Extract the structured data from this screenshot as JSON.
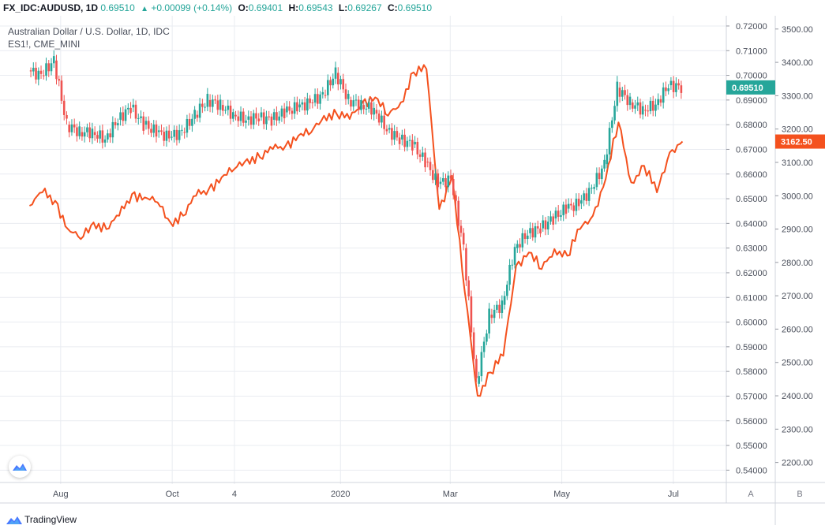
{
  "header": {
    "symbol": "FX_IDC:AUDUSD, 1D",
    "last": "0.69510",
    "change": "+0.00099 (+0.14%)",
    "o_label": "O:",
    "o_value": "0.69401",
    "h_label": "H:",
    "h_value": "0.69543",
    "l_label": "L:",
    "l_value": "0.69267",
    "c_label": "C:",
    "c_value": "0.69510"
  },
  "legend": {
    "main": "Australian Dollar / U.S. Dollar, 1D, IDC",
    "compare": "ES1!, CME_MINI"
  },
  "footer": {
    "brand": "TradingView"
  },
  "colors": {
    "up": "#26a69a",
    "down": "#ef5350",
    "compare": "#f4511e",
    "grid": "#e9ecf1",
    "axis_text": "#4a4f5b",
    "last_badge": "#26a69a",
    "compare_badge": "#f4511e"
  },
  "chart_data": {
    "type": "line",
    "title": "Australian Dollar / U.S. Dollar, 1D, IDC",
    "xlabel": "",
    "ylabel": "",
    "x_ticks": [
      "Aug",
      "Oct",
      "4",
      "2020",
      "Mar",
      "May",
      "Jul"
    ],
    "y_axis_left_ticks": [
      "0.72000",
      "0.71000",
      "0.70000",
      "0.69000",
      "0.68000",
      "0.67000",
      "0.66000",
      "0.65000",
      "0.64000",
      "0.63000",
      "0.62000",
      "0.61000",
      "0.60000",
      "0.59000",
      "0.58000",
      "0.57000",
      "0.56000",
      "0.55000",
      "0.54000"
    ],
    "y_axis_right_ticks": [
      "3500.00",
      "3400.00",
      "3300.00",
      "3200.00",
      "3100.00",
      "3000.00",
      "2900.00",
      "2800.00",
      "2700.00",
      "2600.00",
      "2500.00",
      "2400.00",
      "2300.00",
      "2200.00"
    ],
    "ylim_left": [
      0.535,
      0.7235
    ],
    "ylim_right": [
      2140,
      3535
    ],
    "scale_labels": [
      "A",
      "B"
    ],
    "last_labels": {
      "left": "0.69510",
      "right": "3162.50"
    },
    "grid": true,
    "series": [
      {
        "name": "Australian Dollar / U.S. Dollar, 1D, IDC",
        "style": "candlestick",
        "axis": "left",
        "x": [
          "2019-07-15",
          "2019-07-22",
          "2019-07-29",
          "2019-08-05",
          "2019-08-12",
          "2019-08-19",
          "2019-08-26",
          "2019-09-02",
          "2019-09-09",
          "2019-09-16",
          "2019-09-23",
          "2019-09-30",
          "2019-10-07",
          "2019-10-14",
          "2019-10-21",
          "2019-10-28",
          "2019-11-04",
          "2019-11-11",
          "2019-11-18",
          "2019-11-25",
          "2019-12-02",
          "2019-12-09",
          "2019-12-16",
          "2019-12-23",
          "2019-12-30",
          "2020-01-06",
          "2020-01-13",
          "2020-01-20",
          "2020-01-27",
          "2020-02-03",
          "2020-02-10",
          "2020-02-17",
          "2020-02-24",
          "2020-03-02",
          "2020-03-09",
          "2020-03-16",
          "2020-03-23",
          "2020-03-30",
          "2020-04-06",
          "2020-04-13",
          "2020-04-20",
          "2020-04-27",
          "2020-05-04",
          "2020-05-11",
          "2020-05-18",
          "2020-05-25",
          "2020-06-01",
          "2020-06-08",
          "2020-06-15",
          "2020-06-22",
          "2020-06-29",
          "2020-07-06"
        ],
        "values": [
          0.702,
          0.7,
          0.706,
          0.68,
          0.677,
          0.677,
          0.674,
          0.682,
          0.687,
          0.68,
          0.677,
          0.675,
          0.677,
          0.684,
          0.69,
          0.688,
          0.684,
          0.682,
          0.683,
          0.682,
          0.685,
          0.687,
          0.689,
          0.692,
          0.701,
          0.69,
          0.688,
          0.686,
          0.678,
          0.674,
          0.672,
          0.665,
          0.656,
          0.658,
          0.63,
          0.575,
          0.603,
          0.607,
          0.63,
          0.636,
          0.638,
          0.642,
          0.646,
          0.648,
          0.654,
          0.664,
          0.695,
          0.689,
          0.686,
          0.688,
          0.696,
          0.6951
        ]
      },
      {
        "name": "ES1!, CME_MINI",
        "style": "line",
        "axis": "right",
        "x": [
          "2019-07-15",
          "2019-07-22",
          "2019-07-29",
          "2019-08-05",
          "2019-08-12",
          "2019-08-19",
          "2019-08-26",
          "2019-09-02",
          "2019-09-09",
          "2019-09-16",
          "2019-09-23",
          "2019-09-30",
          "2019-10-07",
          "2019-10-14",
          "2019-10-21",
          "2019-10-28",
          "2019-11-04",
          "2019-11-11",
          "2019-11-18",
          "2019-11-25",
          "2019-12-02",
          "2019-12-09",
          "2019-12-16",
          "2019-12-23",
          "2019-12-30",
          "2020-01-06",
          "2020-01-13",
          "2020-01-20",
          "2020-01-27",
          "2020-02-03",
          "2020-02-10",
          "2020-02-17",
          "2020-02-24",
          "2020-03-02",
          "2020-03-09",
          "2020-03-16",
          "2020-03-23",
          "2020-03-30",
          "2020-04-06",
          "2020-04-13",
          "2020-04-20",
          "2020-04-27",
          "2020-05-04",
          "2020-05-11",
          "2020-05-18",
          "2020-05-25",
          "2020-06-01",
          "2020-06-08",
          "2020-06-15",
          "2020-06-22",
          "2020-06-29",
          "2020-07-06"
        ],
        "values": [
          2970,
          3010,
          2985,
          2900,
          2870,
          2920,
          2900,
          2940,
          3005,
          2995,
          2980,
          2920,
          2940,
          3000,
          3020,
          3055,
          3080,
          3110,
          3115,
          3140,
          3150,
          3180,
          3190,
          3240,
          3245,
          3230,
          3280,
          3295,
          3240,
          3280,
          3370,
          3380,
          2960,
          3060,
          2710,
          2400,
          2470,
          2520,
          2790,
          2830,
          2780,
          2840,
          2820,
          2900,
          2940,
          3050,
          3220,
          3040,
          3090,
          3010,
          3130,
          3162.5
        ]
      }
    ]
  }
}
